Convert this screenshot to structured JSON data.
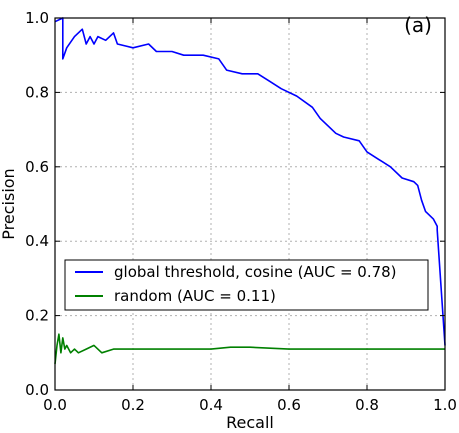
{
  "chart_data": {
    "type": "line",
    "panel_label": "(a)",
    "xlabel": "Recall",
    "ylabel": "Precision",
    "xlim": [
      0.0,
      1.0
    ],
    "ylim": [
      0.0,
      1.0
    ],
    "x_ticks": [
      "0.0",
      "0.2",
      "0.4",
      "0.6",
      "0.8",
      "1.0"
    ],
    "y_ticks": [
      "0.0",
      "0.2",
      "0.4",
      "0.6",
      "0.8",
      "1.0"
    ],
    "grid": true,
    "legend_position": "lower-center",
    "series": [
      {
        "name": "global threshold, cosine (AUC = 0.78)",
        "color": "#0000ff",
        "points": [
          [
            0.0,
            0.99
          ],
          [
            0.02,
            1.0
          ],
          [
            0.02,
            0.89
          ],
          [
            0.03,
            0.92
          ],
          [
            0.05,
            0.95
          ],
          [
            0.07,
            0.97
          ],
          [
            0.08,
            0.93
          ],
          [
            0.09,
            0.95
          ],
          [
            0.1,
            0.93
          ],
          [
            0.11,
            0.95
          ],
          [
            0.13,
            0.94
          ],
          [
            0.15,
            0.96
          ],
          [
            0.16,
            0.93
          ],
          [
            0.2,
            0.92
          ],
          [
            0.24,
            0.93
          ],
          [
            0.26,
            0.91
          ],
          [
            0.3,
            0.91
          ],
          [
            0.33,
            0.9
          ],
          [
            0.38,
            0.9
          ],
          [
            0.42,
            0.89
          ],
          [
            0.44,
            0.86
          ],
          [
            0.48,
            0.85
          ],
          [
            0.52,
            0.85
          ],
          [
            0.55,
            0.83
          ],
          [
            0.58,
            0.81
          ],
          [
            0.62,
            0.79
          ],
          [
            0.66,
            0.76
          ],
          [
            0.68,
            0.73
          ],
          [
            0.72,
            0.69
          ],
          [
            0.74,
            0.68
          ],
          [
            0.78,
            0.67
          ],
          [
            0.8,
            0.64
          ],
          [
            0.83,
            0.62
          ],
          [
            0.86,
            0.6
          ],
          [
            0.89,
            0.57
          ],
          [
            0.92,
            0.56
          ],
          [
            0.93,
            0.55
          ],
          [
            0.94,
            0.51
          ],
          [
            0.95,
            0.48
          ],
          [
            0.97,
            0.46
          ],
          [
            0.98,
            0.44
          ],
          [
            0.98,
            0.43
          ],
          [
            1.0,
            0.12
          ]
        ]
      },
      {
        "name": "random (AUC = 0.11)",
        "color": "#008000",
        "points": [
          [
            0.0,
            0.07
          ],
          [
            0.005,
            0.12
          ],
          [
            0.01,
            0.15
          ],
          [
            0.015,
            0.1
          ],
          [
            0.02,
            0.14
          ],
          [
            0.025,
            0.11
          ],
          [
            0.03,
            0.12
          ],
          [
            0.04,
            0.1
          ],
          [
            0.05,
            0.11
          ],
          [
            0.06,
            0.1
          ],
          [
            0.08,
            0.11
          ],
          [
            0.1,
            0.12
          ],
          [
            0.12,
            0.1
          ],
          [
            0.15,
            0.11
          ],
          [
            0.2,
            0.11
          ],
          [
            0.25,
            0.11
          ],
          [
            0.3,
            0.11
          ],
          [
            0.4,
            0.11
          ],
          [
            0.45,
            0.115
          ],
          [
            0.5,
            0.115
          ],
          [
            0.6,
            0.11
          ],
          [
            0.7,
            0.11
          ],
          [
            0.8,
            0.11
          ],
          [
            0.9,
            0.11
          ],
          [
            1.0,
            0.11
          ]
        ]
      }
    ]
  }
}
